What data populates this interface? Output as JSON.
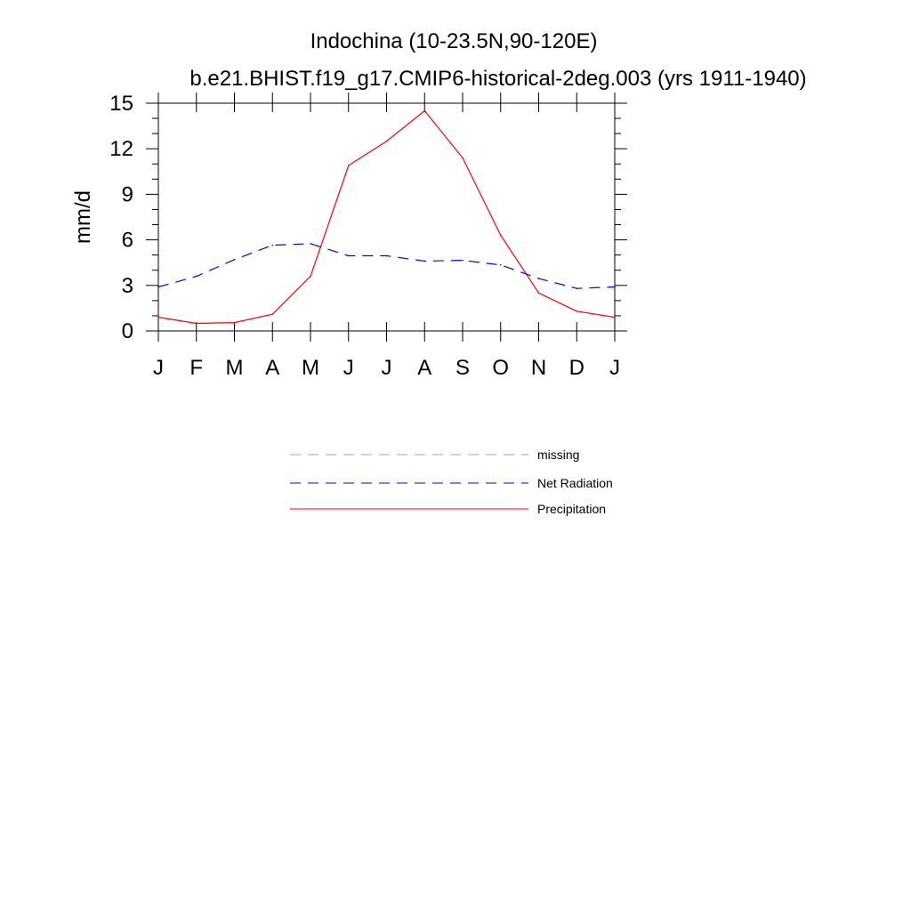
{
  "chart_data": {
    "type": "line",
    "title": "Indochina (10-23.5N,90-120E)",
    "subtitle": "b.e21.BHIST.f19_g17.CMIP6-historical-2deg.003 (yrs 1911-1940)",
    "ylabel": "mm/d",
    "xlabel": "",
    "ylim": [
      0,
      15
    ],
    "yticks": [
      0,
      3,
      6,
      9,
      12,
      15
    ],
    "yminor_step": 1,
    "categories": [
      "J",
      "F",
      "M",
      "A",
      "M",
      "J",
      "J",
      "A",
      "S",
      "O",
      "N",
      "D",
      "J"
    ],
    "grid": false,
    "legend_placement": "below",
    "series": [
      {
        "name": "Precipitation",
        "color": "#ff0000",
        "dash": "solid",
        "values": [
          0.9,
          0.5,
          0.55,
          1.1,
          3.6,
          10.9,
          12.5,
          14.5,
          11.4,
          6.3,
          2.5,
          1.3,
          0.9
        ]
      },
      {
        "name": "Net Radiation",
        "color": "#0000ff",
        "dash": "dashed",
        "values": [
          2.9,
          3.6,
          4.7,
          5.65,
          5.75,
          4.95,
          4.95,
          4.6,
          4.65,
          4.35,
          3.45,
          2.8,
          2.9
        ]
      }
    ],
    "legend": [
      {
        "label": "missing",
        "color": "#a0a0a0",
        "dash": "dashed"
      },
      {
        "label": "Net Radiation",
        "color": "#0000ff",
        "dash": "dashed"
      },
      {
        "label": "Precipitation",
        "color": "#ff0000",
        "dash": "solid"
      }
    ]
  }
}
